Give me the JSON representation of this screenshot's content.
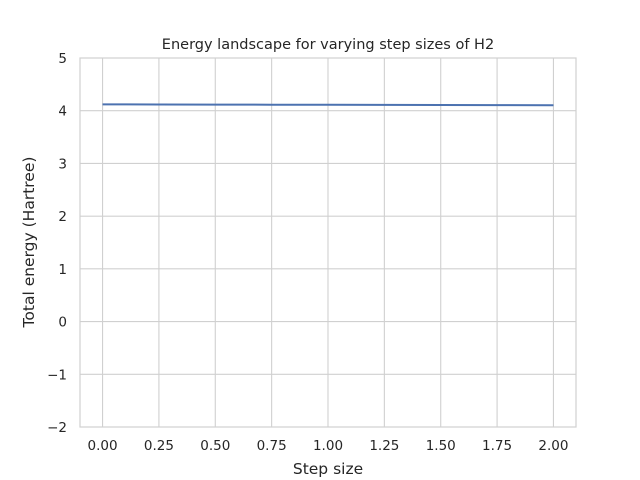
{
  "chart_data": {
    "type": "line",
    "title": "Energy landscape for varying step sizes of H2",
    "xlabel": "Step size",
    "ylabel": "Total energy (Hartree)",
    "xlim": [
      -0.1,
      2.1
    ],
    "ylim": [
      -2,
      5
    ],
    "xticks": [
      0.0,
      0.25,
      0.5,
      0.75,
      1.0,
      1.25,
      1.5,
      1.75,
      2.0
    ],
    "xtick_labels": [
      "0.00",
      "0.25",
      "0.50",
      "0.75",
      "1.00",
      "1.25",
      "1.50",
      "1.75",
      "2.00"
    ],
    "yticks": [
      -2,
      -1,
      0,
      1,
      2,
      3,
      4,
      5
    ],
    "ytick_labels": [
      "−2",
      "−1",
      "0",
      "1",
      "2",
      "3",
      "4",
      "5"
    ],
    "grid": true,
    "series": [
      {
        "color": "#4c72b0",
        "x": [
          0.0,
          0.25,
          0.5,
          0.75,
          1.0,
          1.25,
          1.5,
          1.75,
          2.0
        ],
        "y": [
          4.12,
          4.118,
          4.116,
          4.114,
          4.112,
          4.11,
          4.108,
          4.106,
          4.104
        ]
      }
    ]
  }
}
